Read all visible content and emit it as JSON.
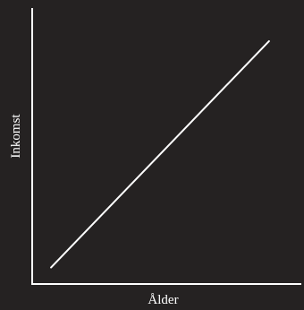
{
  "colors": {
    "background": "#252222",
    "axis": "#ffffff",
    "line": "#ffffff"
  },
  "chart_data": {
    "type": "line",
    "xlabel": "Ålder",
    "ylabel": "Inkomst",
    "ticks": false,
    "grid": false,
    "legend": "none",
    "xlim": [
      0,
      1
    ],
    "ylim": [
      0,
      1
    ],
    "series": [
      {
        "x": [
          0.07,
          0.88
        ],
        "values": [
          0.06,
          0.88
        ]
      }
    ]
  }
}
